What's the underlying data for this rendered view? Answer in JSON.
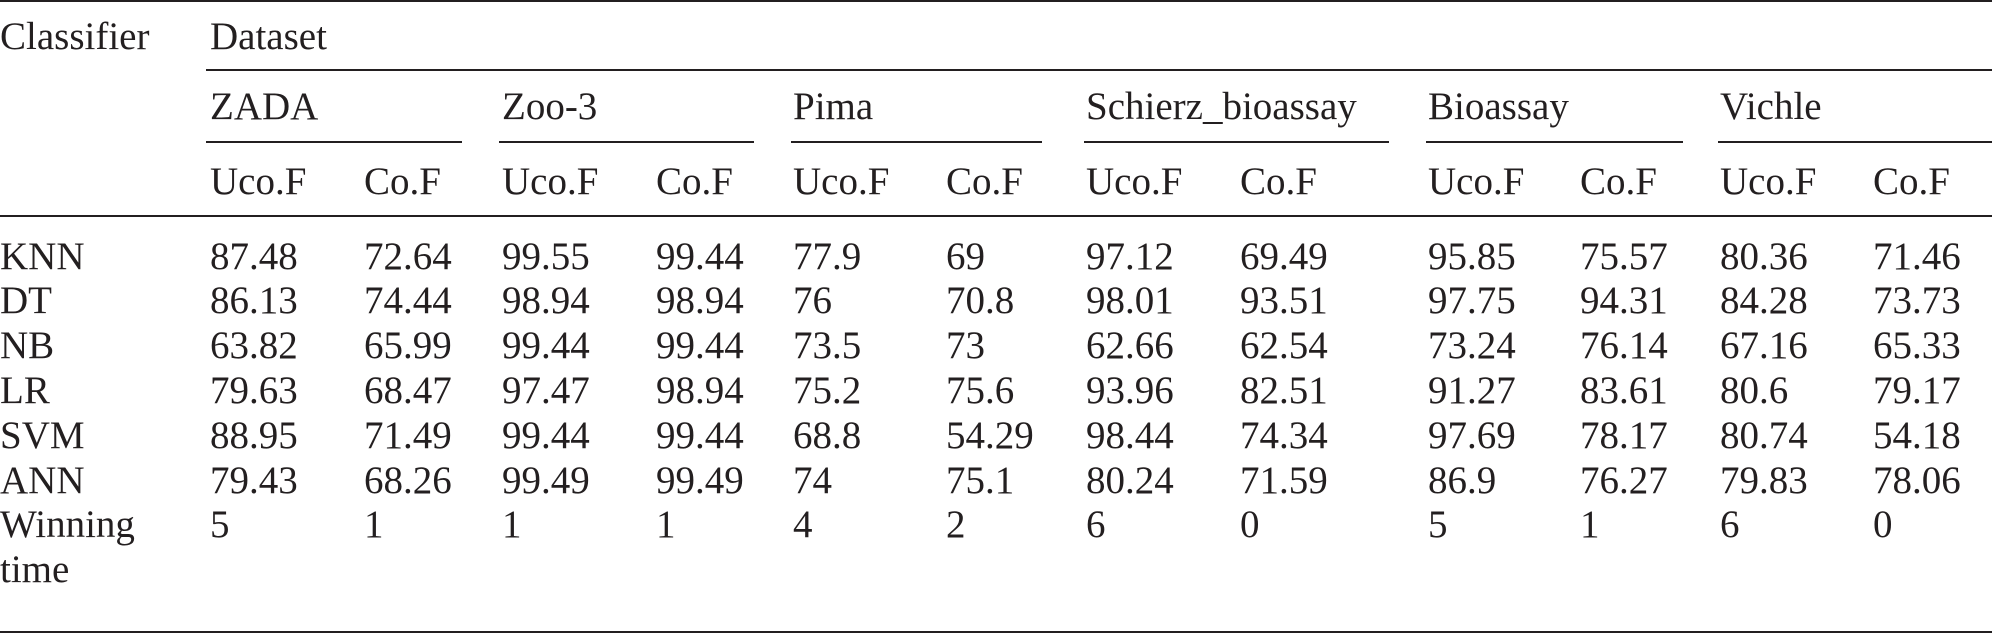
{
  "table": {
    "header": {
      "classifier": "Classifier",
      "dataset": "Dataset",
      "datasets": [
        "ZADA",
        "Zoo-3",
        "Pima",
        "Schierz_bioassay",
        "Bioassay",
        "Vichle"
      ],
      "subcolumns": [
        "Uco.F",
        "Co.F"
      ]
    },
    "rows": [
      {
        "label": "KNN",
        "values": [
          "87.48",
          "72.64",
          "99.55",
          "99.44",
          "77.9",
          "69",
          "97.12",
          "69.49",
          "95.85",
          "75.57",
          "80.36",
          "71.46"
        ]
      },
      {
        "label": "DT",
        "values": [
          "86.13",
          "74.44",
          "98.94",
          "98.94",
          "76",
          "70.8",
          "98.01",
          "93.51",
          "97.75",
          "94.31",
          "84.28",
          "73.73"
        ]
      },
      {
        "label": "NB",
        "values": [
          "63.82",
          "65.99",
          "99.44",
          "99.44",
          "73.5",
          "73",
          "62.66",
          "62.54",
          "73.24",
          "76.14",
          "67.16",
          "65.33"
        ]
      },
      {
        "label": "LR",
        "values": [
          "79.63",
          "68.47",
          "97.47",
          "98.94",
          "75.2",
          "75.6",
          "93.96",
          "82.51",
          "91.27",
          "83.61",
          "80.6",
          "79.17"
        ]
      },
      {
        "label": "SVM",
        "values": [
          "88.95",
          "71.49",
          "99.44",
          "99.44",
          "68.8",
          "54.29",
          "98.44",
          "74.34",
          "97.69",
          "78.17",
          "80.74",
          "54.18"
        ]
      },
      {
        "label": "ANN",
        "values": [
          "79.43",
          "68.26",
          "99.49",
          "99.49",
          "74",
          "75.1",
          "80.24",
          "71.59",
          "86.9",
          "76.27",
          "79.83",
          "78.06"
        ]
      },
      {
        "label_line1": "Winning",
        "label_line2": "time",
        "values": [
          "5",
          "1",
          "1",
          "1",
          "4",
          "2",
          "6",
          "0",
          "5",
          "1",
          "6",
          "0"
        ]
      }
    ]
  }
}
